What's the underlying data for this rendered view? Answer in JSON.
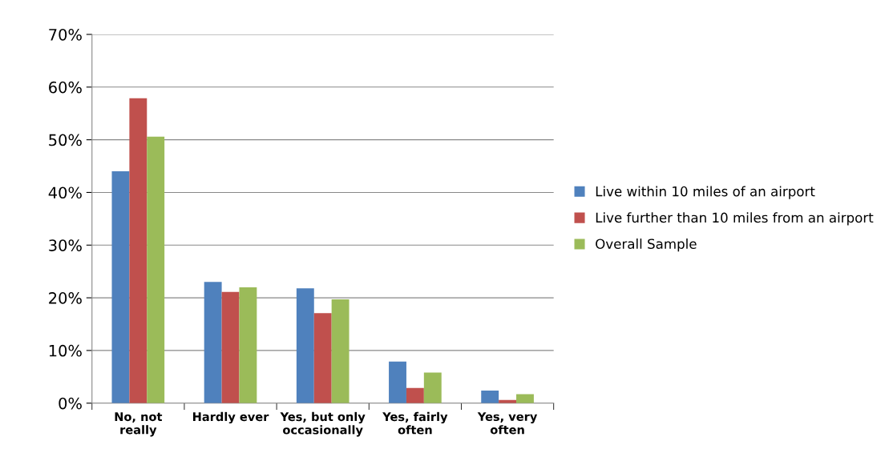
{
  "chart_data": {
    "type": "bar",
    "categories": [
      "No, not\nreally",
      "Hardly ever",
      "Yes, but only\noccasionally",
      "Yes, fairly\noften",
      "Yes, very\noften"
    ],
    "series": [
      {
        "name": "Live within 10 miles of an airport",
        "color": "#4f81bd",
        "values": [
          44,
          23,
          21.8,
          7.9,
          2.4
        ]
      },
      {
        "name": "Live further than 10 miles from an airport",
        "color": "#c0504d",
        "values": [
          57.9,
          21.1,
          17.1,
          2.9,
          0.6
        ]
      },
      {
        "name": "Overall Sample",
        "color": "#9bbb59",
        "values": [
          50.6,
          22,
          19.7,
          5.8,
          1.7
        ]
      }
    ],
    "ylim": [
      0,
      70
    ],
    "yticks": [
      {
        "value": 0,
        "label": "0%"
      },
      {
        "value": 10,
        "label": "10%"
      },
      {
        "value": 20,
        "label": "20%"
      },
      {
        "value": 30,
        "label": "30%"
      },
      {
        "value": 40,
        "label": "40%"
      },
      {
        "value": 50,
        "label": "50%"
      },
      {
        "value": 60,
        "label": "60%"
      },
      {
        "value": 70,
        "label": "70%"
      }
    ],
    "grid": "y",
    "legend": "right"
  }
}
